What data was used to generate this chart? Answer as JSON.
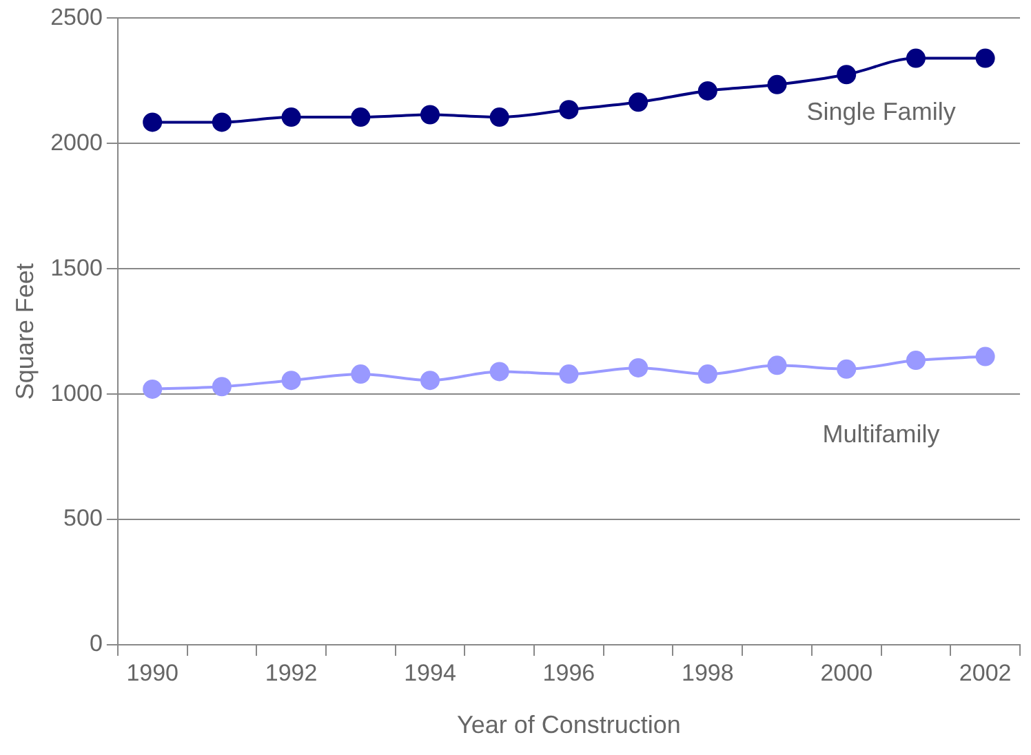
{
  "chart_data": {
    "type": "line",
    "xlabel": "Year of Construction",
    "ylabel": "Square Feet",
    "categories": [
      "1990",
      null,
      "1992",
      null,
      "1994",
      null,
      "1996",
      null,
      "1998",
      null,
      "2000",
      null,
      "2002"
    ],
    "series": [
      {
        "name": "Single Family",
        "color": "#000080",
        "values": [
          2085,
          2085,
          2105,
          2105,
          2115,
          2105,
          2135,
          2165,
          2210,
          2235,
          2275,
          2340,
          2340
        ]
      },
      {
        "name": "Multifamily",
        "color": "#9999ff",
        "values": [
          1020,
          1030,
          1055,
          1080,
          1055,
          1090,
          1080,
          1105,
          1080,
          1115,
          1100,
          1135,
          1150
        ]
      }
    ],
    "ylim": [
      0,
      2500
    ],
    "yticks": [
      0,
      500,
      1000,
      1500,
      2000,
      2500
    ],
    "grid": "y",
    "legend": false,
    "marker": "circle",
    "line_style": "solid"
  }
}
